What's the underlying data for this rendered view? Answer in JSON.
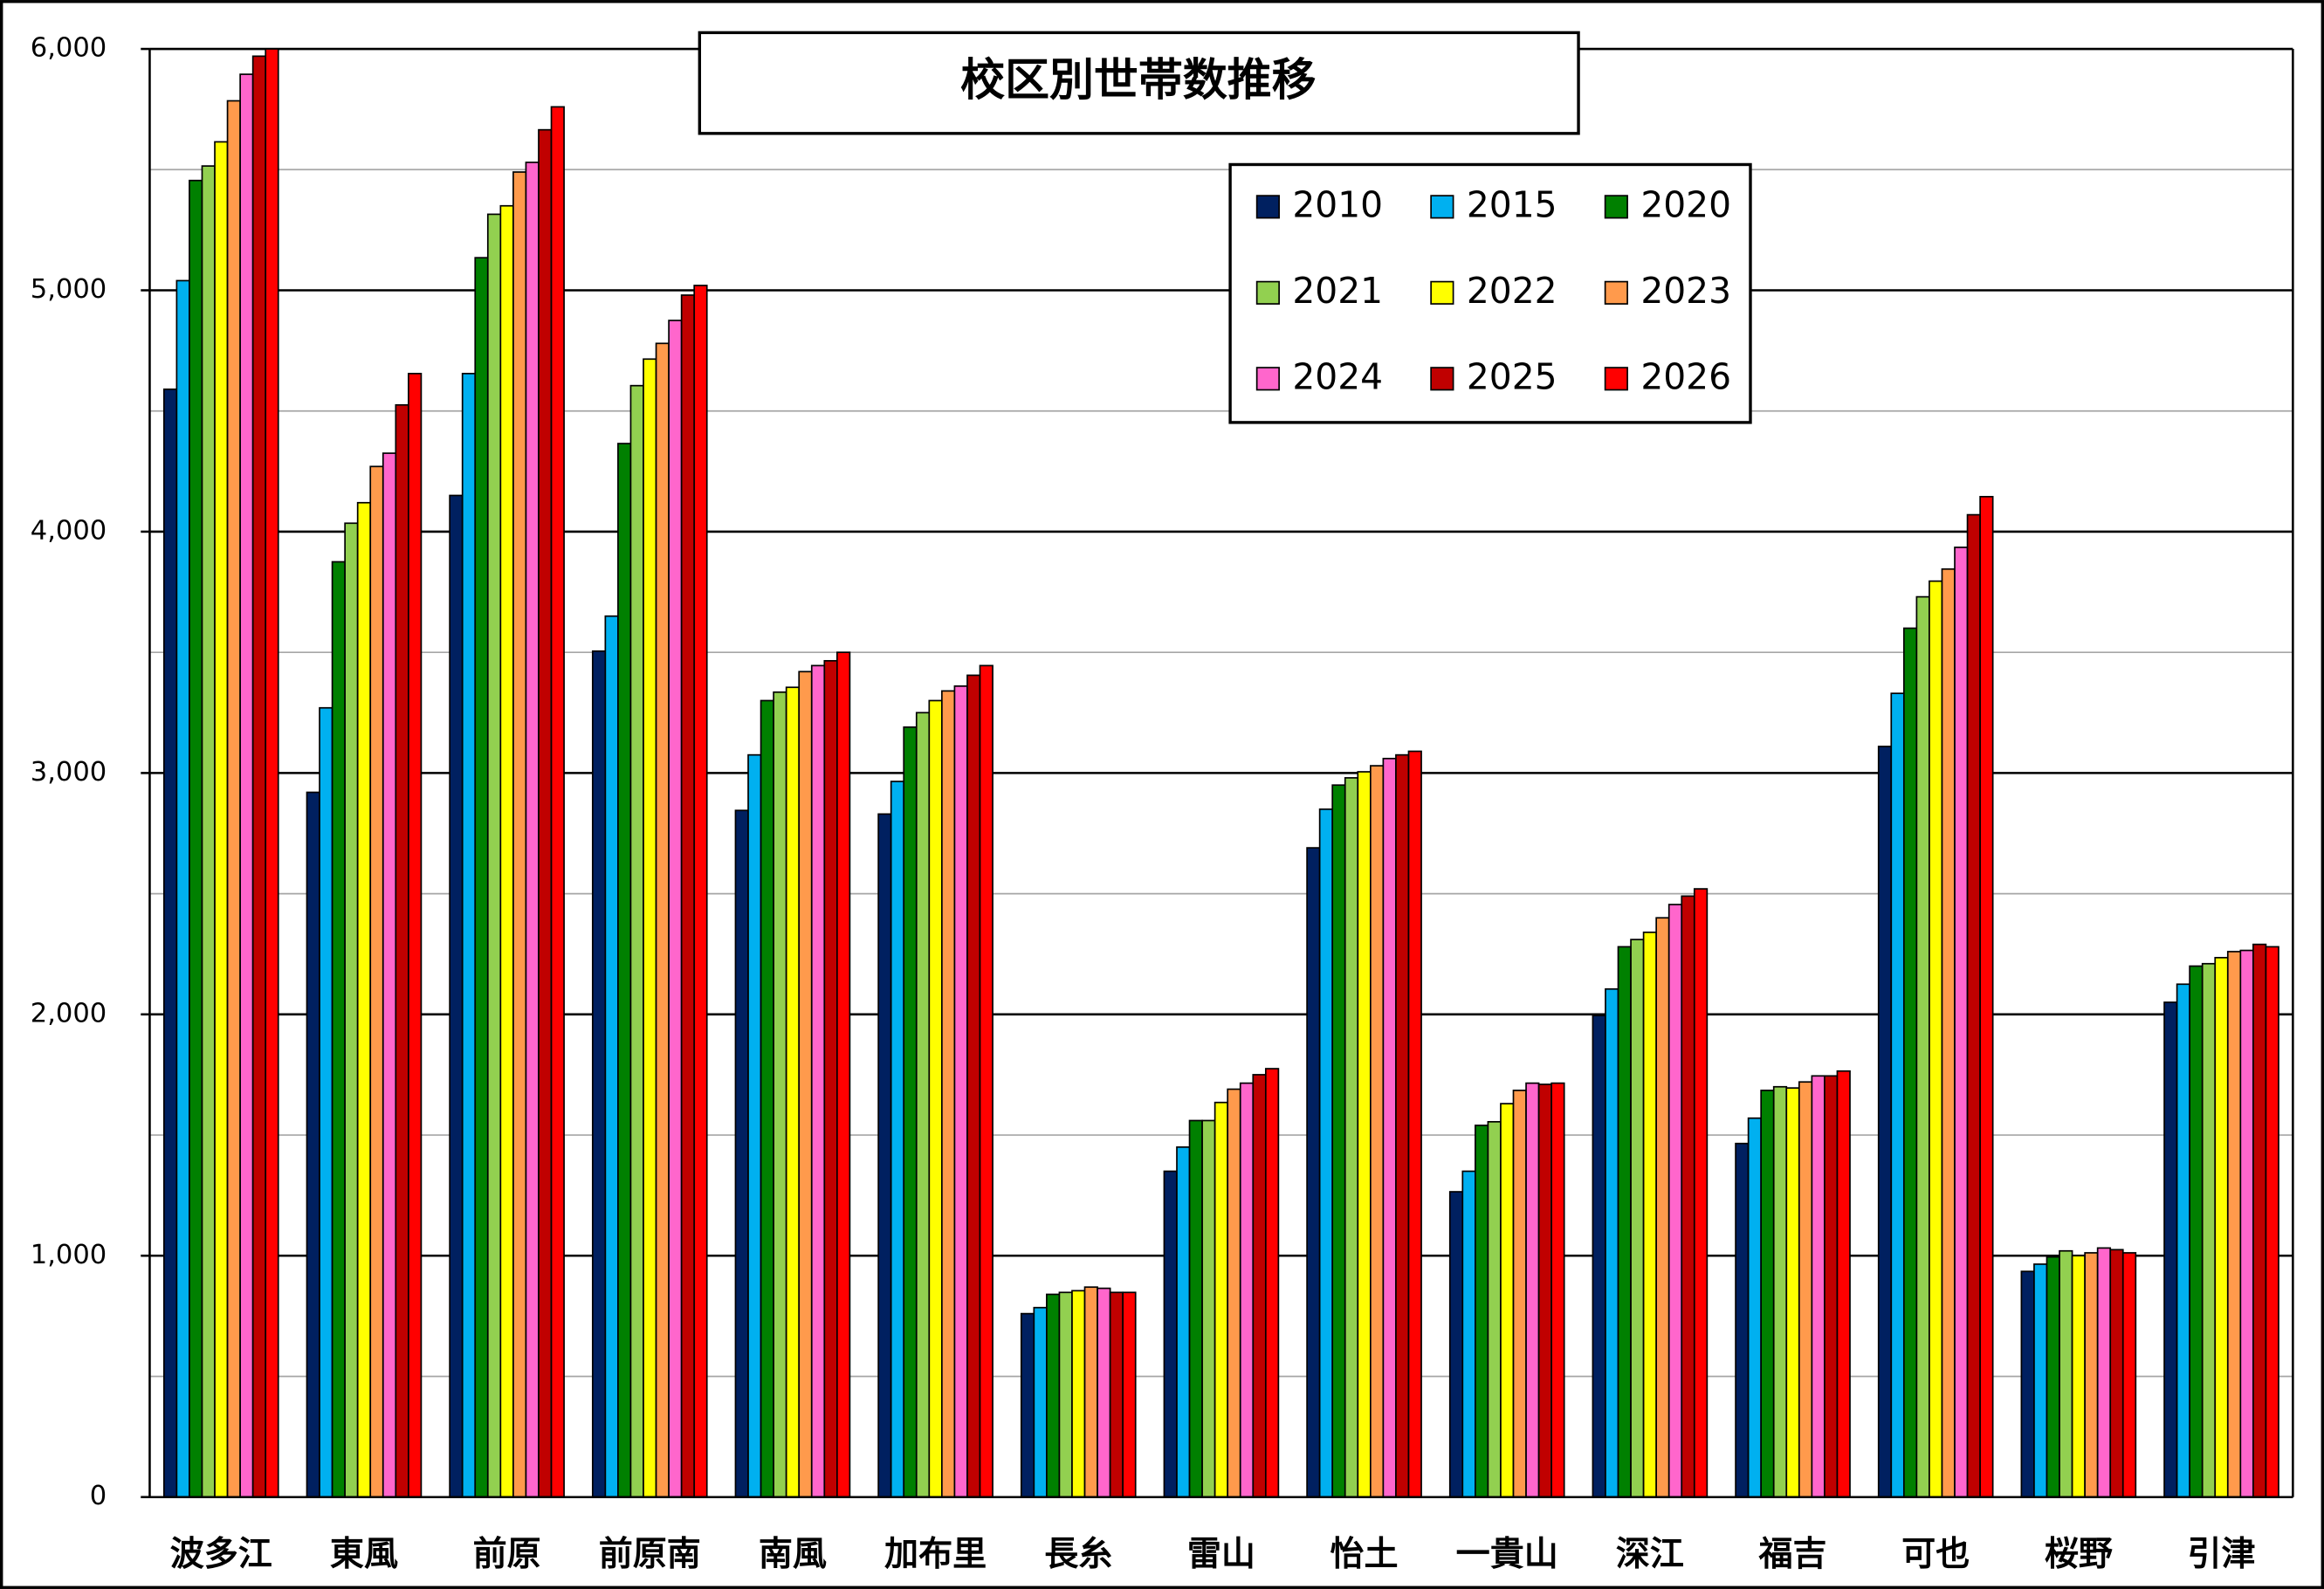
{
  "chart_data": {
    "type": "bar",
    "title": "校区別世帯数推移",
    "categories": [
      "波多江",
      "東風",
      "前原",
      "前原南",
      "南風",
      "加布里",
      "長糸",
      "雷山",
      "怡土",
      "一貴山",
      "深江",
      "福吉",
      "可也",
      "桜野",
      "引津"
    ],
    "series": [
      {
        "name": "2010",
        "color": "#002060",
        "values": [
          4590,
          2920,
          4150,
          3505,
          2845,
          2830,
          760,
          1350,
          2690,
          1265,
          1995,
          1465,
          3110,
          935,
          2050
        ]
      },
      {
        "name": "2015",
        "color": "#00b0f0",
        "values": [
          5040,
          3270,
          4655,
          3650,
          3075,
          2965,
          785,
          1450,
          2850,
          1350,
          2105,
          1570,
          3330,
          965,
          2125
        ]
      },
      {
        "name": "2020",
        "color": "#008000",
        "values": [
          5455,
          3875,
          5135,
          4365,
          3300,
          3190,
          840,
          1560,
          2950,
          1540,
          2280,
          1685,
          3600,
          995,
          2200
        ]
      },
      {
        "name": "2021",
        "color": "#92d050",
        "values": [
          5515,
          4035,
          5315,
          4605,
          3335,
          3250,
          848,
          1560,
          2980,
          1555,
          2310,
          1700,
          3730,
          1020,
          2210
        ]
      },
      {
        "name": "2022",
        "color": "#ffff00",
        "values": [
          5615,
          4120,
          5350,
          4715,
          3355,
          3300,
          855,
          1635,
          3005,
          1630,
          2340,
          1695,
          3795,
          1000,
          2235
        ]
      },
      {
        "name": "2023",
        "color": "#ff9a4c",
        "values": [
          5785,
          4270,
          5490,
          4780,
          3420,
          3340,
          870,
          1690,
          3030,
          1685,
          2400,
          1720,
          3845,
          1012,
          2260
        ]
      },
      {
        "name": "2024",
        "color": "#ff66cc",
        "values": [
          5895,
          4325,
          5530,
          4875,
          3445,
          3360,
          865,
          1715,
          3060,
          1715,
          2455,
          1745,
          3935,
          1032,
          2265
        ]
      },
      {
        "name": "2025",
        "color": "#c00000",
        "values": [
          5970,
          4525,
          5665,
          4980,
          3465,
          3405,
          848,
          1750,
          3075,
          1710,
          2490,
          1745,
          4070,
          1025,
          2290
        ]
      },
      {
        "name": "2026",
        "color": "#ff0000",
        "values": [
          6000,
          4655,
          5760,
          5020,
          3500,
          3445,
          848,
          1775,
          3090,
          1715,
          2520,
          1765,
          4145,
          1012,
          2280
        ]
      }
    ],
    "ylim": [
      0,
      6000
    ],
    "yticks": [
      0,
      {
        "value": 1000,
        "label": "1,000"
      },
      {
        "value": 2000,
        "label": "2,000"
      },
      {
        "value": 3000,
        "label": "3,000"
      },
      {
        "value": 4000,
        "label": "4,000"
      },
      {
        "value": 5000,
        "label": "5,000"
      },
      {
        "value": 6000,
        "label": "6,000"
      }
    ],
    "minor_yticks": [
      500,
      1500,
      2500,
      3500,
      4500,
      5500
    ],
    "grid": true
  }
}
